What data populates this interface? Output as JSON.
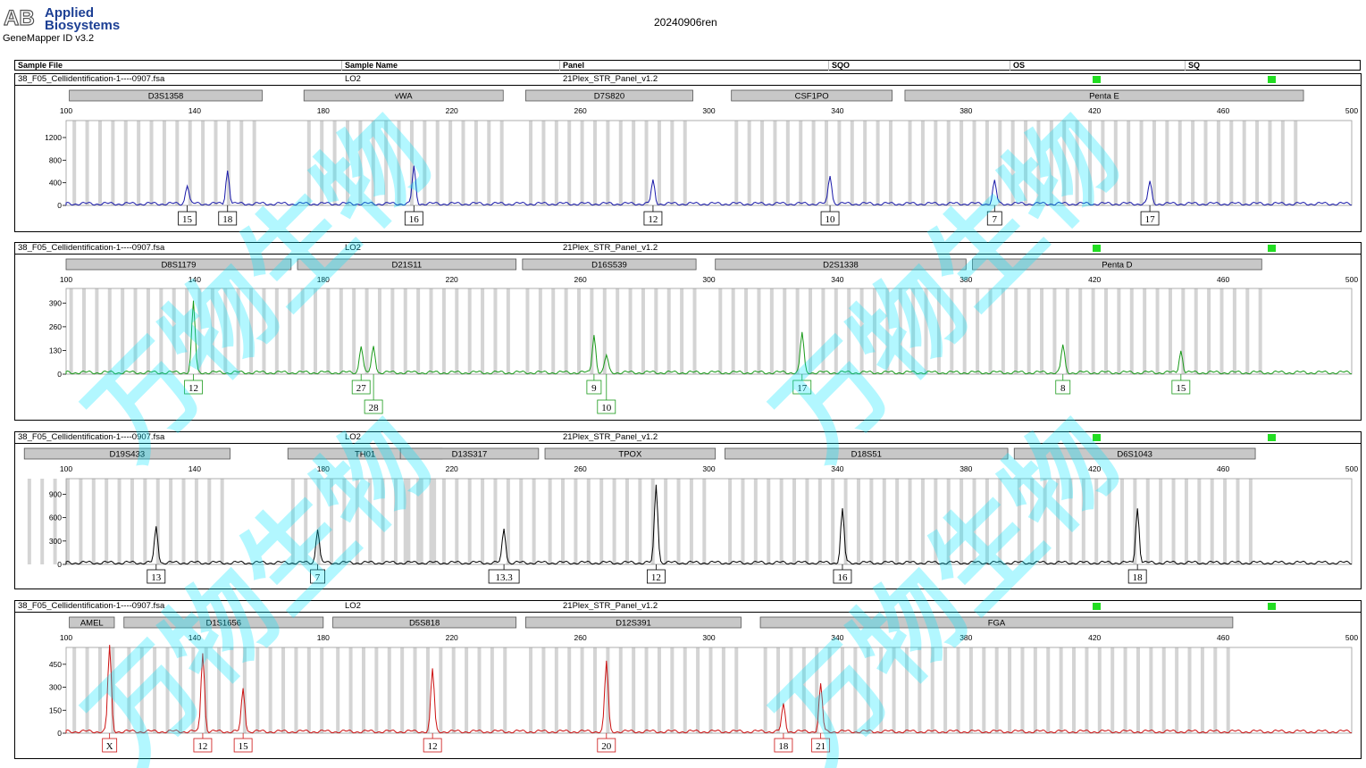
{
  "app": {
    "vendor_line1": "Applied",
    "vendor_line2": "Biosystems",
    "logo_letters": "AB",
    "version": "GeneMapper ID v3.2",
    "run_title": "20240906ren",
    "watermark": "万物生物"
  },
  "table_headers": [
    "Sample File",
    "Sample Name",
    "Panel",
    "SQO",
    "OS",
    "SQ"
  ],
  "quality_color": "#22dd22",
  "axis": {
    "min": 100,
    "max": 500,
    "ticks": [
      100,
      140,
      180,
      220,
      260,
      300,
      340,
      380,
      420,
      460,
      500
    ]
  },
  "panels": [
    {
      "sample_file": "38_F05_Cellidentification-1----0907.fsa",
      "sample_name": "LO2",
      "panel": "21Plex_STR_Panel_v1.2",
      "dye_color": "#1a1aaa",
      "label_color": "#000000",
      "y_ticks": [
        0,
        400,
        800,
        1200
      ],
      "y_max": 1500,
      "loci": [
        {
          "name": "D3S1358",
          "start": 101,
          "end": 161
        },
        {
          "name": "vWA",
          "start": 174,
          "end": 236
        },
        {
          "name": "D7S820",
          "start": 243,
          "end": 295
        },
        {
          "name": "CSF1PO",
          "start": 307,
          "end": 357
        },
        {
          "name": "Penta E",
          "start": 361,
          "end": 485
        }
      ],
      "peaks": [
        {
          "x": 132,
          "height": 340,
          "alleles": [
            "15"
          ]
        },
        {
          "x": 145,
          "height": 590,
          "alleles": [
            "18"
          ]
        },
        {
          "x": 205,
          "height": 650,
          "alleles": [
            "16"
          ]
        },
        {
          "x": 282,
          "height": 400,
          "alleles": [
            "12"
          ]
        },
        {
          "x": 339,
          "height": 510,
          "alleles": [
            "10"
          ]
        },
        {
          "x": 392,
          "height": 400,
          "alleles": [
            "7"
          ]
        },
        {
          "x": 442,
          "height": 390,
          "alleles": [
            "17"
          ]
        }
      ]
    },
    {
      "sample_file": "38_F05_Cellidentification-1----0907.fsa",
      "sample_name": "LO2",
      "panel": "21Plex_STR_Panel_v1.2",
      "dye_color": "#1a9a1a",
      "label_color": "#1a9a1a",
      "y_ticks": [
        0,
        130,
        260,
        390
      ],
      "y_max": 470,
      "loci": [
        {
          "name": "D8S1179",
          "start": 100,
          "end": 170
        },
        {
          "name": "D21S11",
          "start": 172,
          "end": 240
        },
        {
          "name": "D16S539",
          "start": 242,
          "end": 296
        },
        {
          "name": "D2S1338",
          "start": 302,
          "end": 380
        },
        {
          "name": "Penta D",
          "start": 382,
          "end": 472
        }
      ],
      "peaks": [
        {
          "x": 134,
          "height": 390,
          "alleles": [
            "12"
          ]
        },
        {
          "x": 188,
          "height": 150,
          "alleles": [
            "27"
          ]
        },
        {
          "x": 192,
          "height": 145,
          "alleles": [
            "28"
          ]
        },
        {
          "x": 263,
          "height": 210,
          "alleles": [
            "9"
          ]
        },
        {
          "x": 267,
          "height": 95,
          "alleles": [
            "10"
          ]
        },
        {
          "x": 330,
          "height": 220,
          "alleles": [
            "17"
          ]
        },
        {
          "x": 414,
          "height": 150,
          "alleles": [
            "8"
          ]
        },
        {
          "x": 452,
          "height": 120,
          "alleles": [
            "15"
          ]
        }
      ]
    },
    {
      "sample_file": "38_F05_Cellidentification-1----0907.fsa",
      "sample_name": "LO2",
      "panel": "21Plex_STR_Panel_v1.2",
      "dye_color": "#000000",
      "label_color": "#000000",
      "y_ticks": [
        0,
        300,
        600,
        900
      ],
      "y_max": 1100,
      "loci": [
        {
          "name": "D19S433",
          "start": 87,
          "end": 151
        },
        {
          "name": "TH01",
          "start": 169,
          "end": 217
        },
        {
          "name": "D13S317",
          "start": 204,
          "end": 247
        },
        {
          "name": "TPOX",
          "start": 249,
          "end": 302
        },
        {
          "name": "D18S51",
          "start": 305,
          "end": 393
        },
        {
          "name": "D6S1043",
          "start": 395,
          "end": 470
        }
      ],
      "peaks": [
        {
          "x": 122,
          "height": 460,
          "alleles": [
            "13"
          ]
        },
        {
          "x": 174,
          "height": 440,
          "alleles": [
            "7"
          ]
        },
        {
          "x": 234,
          "height": 440,
          "alleles": [
            "13.3"
          ]
        },
        {
          "x": 283,
          "height": 1010,
          "alleles": [
            "12"
          ]
        },
        {
          "x": 343,
          "height": 680,
          "alleles": [
            "16"
          ]
        },
        {
          "x": 438,
          "height": 700,
          "alleles": [
            "18"
          ]
        }
      ]
    },
    {
      "sample_file": "38_F05_Cellidentification-1----0907.fsa",
      "sample_name": "LO2",
      "panel": "21Plex_STR_Panel_v1.2",
      "dye_color": "#cc1111",
      "label_color": "#cc1111",
      "y_ticks": [
        0,
        150,
        300,
        450
      ],
      "y_max": 560,
      "loci": [
        {
          "name": "AMEL",
          "start": 101,
          "end": 115
        },
        {
          "name": "D1S1656",
          "start": 118,
          "end": 180
        },
        {
          "name": "D5S818",
          "start": 183,
          "end": 240
        },
        {
          "name": "D12S391",
          "start": 243,
          "end": 310
        },
        {
          "name": "FGA",
          "start": 316,
          "end": 463
        }
      ],
      "peaks": [
        {
          "x": 107,
          "height": 560,
          "alleles": [
            "X"
          ]
        },
        {
          "x": 137,
          "height": 520,
          "alleles": [
            "12"
          ]
        },
        {
          "x": 150,
          "height": 280,
          "alleles": [
            "15"
          ]
        },
        {
          "x": 211,
          "height": 410,
          "alleles": [
            "12"
          ]
        },
        {
          "x": 267,
          "height": 460,
          "alleles": [
            "20"
          ]
        },
        {
          "x": 324,
          "height": 175,
          "alleles": [
            "18"
          ]
        },
        {
          "x": 336,
          "height": 305,
          "alleles": [
            "21"
          ]
        }
      ]
    }
  ]
}
